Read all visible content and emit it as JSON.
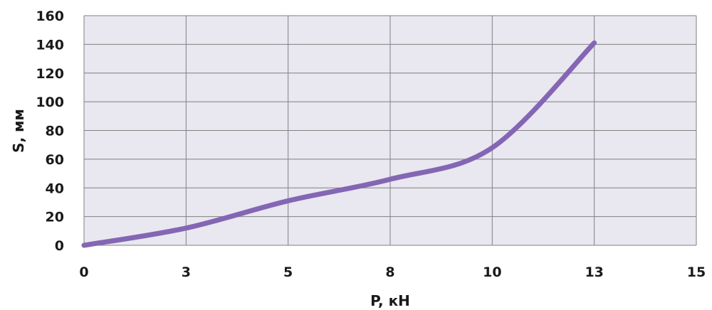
{
  "chart_data": {
    "type": "line",
    "title": "",
    "xlabel": "P, кН",
    "ylabel": "S, мм",
    "x_tick_labels": [
      "0",
      "3",
      "5",
      "8",
      "10",
      "13",
      "15"
    ],
    "y_ticks": [
      0,
      20,
      40,
      60,
      80,
      100,
      120,
      140,
      160
    ],
    "ylim": [
      0,
      160
    ],
    "grid": true,
    "legend": "none",
    "series": [
      {
        "x": [
          "0",
          "3",
          "5",
          "8",
          "10",
          "13"
        ],
        "values": [
          0,
          12,
          31,
          46,
          68,
          141
        ]
      }
    ],
    "colors": {
      "line": "#8466B4",
      "plot_background": "#E9E7F0",
      "grid": "#808080"
    }
  }
}
